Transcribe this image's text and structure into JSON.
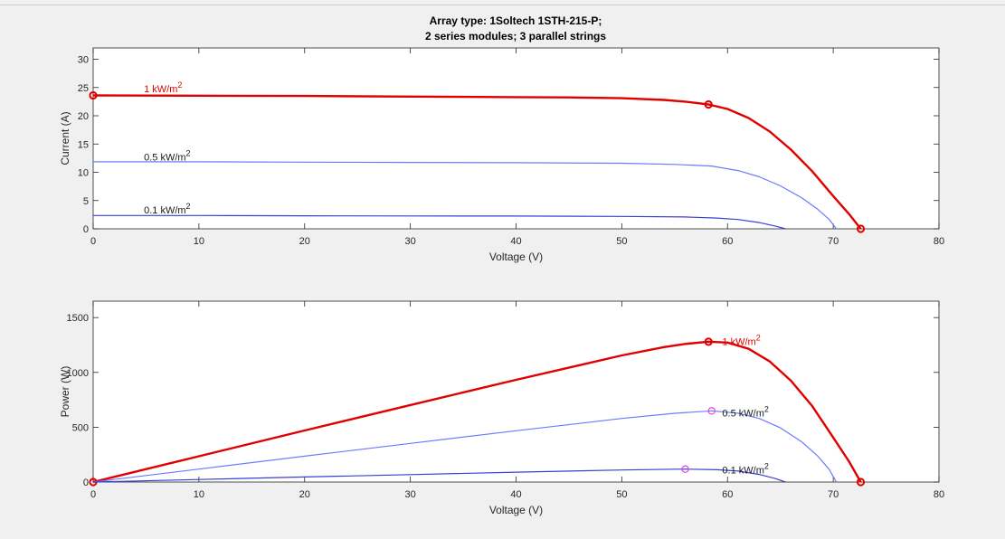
{
  "figure": {
    "title_line1": "Array type: 1Soltech 1STH-215-P;",
    "title_line2": "2 series modules; 3 parallel strings"
  },
  "chart_data": [
    {
      "type": "line",
      "xlabel": "Voltage (V)",
      "ylabel": "Current (A)",
      "xlim": [
        0,
        80
      ],
      "ylim": [
        0,
        32
      ],
      "xticks": [
        0,
        10,
        20,
        30,
        40,
        50,
        60,
        70,
        80
      ],
      "yticks": [
        0,
        5,
        10,
        15,
        20,
        25,
        30
      ],
      "grid": false,
      "series": [
        {
          "name": "1 kW/m",
          "name_sup": "2",
          "color": "#e00000",
          "bold": true,
          "points": [
            [
              0,
              23.6
            ],
            [
              10,
              23.55
            ],
            [
              20,
              23.5
            ],
            [
              30,
              23.4
            ],
            [
              40,
              23.3
            ],
            [
              45,
              23.25
            ],
            [
              50,
              23.1
            ],
            [
              54,
              22.8
            ],
            [
              56,
              22.5
            ],
            [
              58.2,
              22.0
            ],
            [
              60,
              21.2
            ],
            [
              62,
              19.6
            ],
            [
              64,
              17.2
            ],
            [
              66,
              14.0
            ],
            [
              68,
              10.2
            ],
            [
              70,
              5.8
            ],
            [
              71.5,
              2.6
            ],
            [
              72.6,
              0
            ]
          ],
          "markers": [
            [
              0,
              23.6
            ],
            [
              58.2,
              22.0
            ],
            [
              72.6,
              0
            ]
          ]
        },
        {
          "name": "0.5 kW/m",
          "name_sup": "2",
          "color": "#6b7bff",
          "bold": false,
          "points": [
            [
              0,
              11.85
            ],
            [
              10,
              11.85
            ],
            [
              20,
              11.8
            ],
            [
              30,
              11.75
            ],
            [
              40,
              11.7
            ],
            [
              50,
              11.6
            ],
            [
              55,
              11.4
            ],
            [
              58.5,
              11.1
            ],
            [
              61,
              10.3
            ],
            [
              63,
              9.2
            ],
            [
              65,
              7.6
            ],
            [
              67,
              5.5
            ],
            [
              68.5,
              3.5
            ],
            [
              69.6,
              1.7
            ],
            [
              70.3,
              0
            ]
          ],
          "markers": []
        },
        {
          "name": "0.1 kW/m",
          "name_sup": "2",
          "color": "#3a3fd6",
          "bold": false,
          "points": [
            [
              0,
              2.35
            ],
            [
              10,
              2.35
            ],
            [
              20,
              2.3
            ],
            [
              30,
              2.28
            ],
            [
              40,
              2.25
            ],
            [
              50,
              2.2
            ],
            [
              56,
              2.1
            ],
            [
              59,
              1.9
            ],
            [
              61,
              1.65
            ],
            [
              63,
              1.1
            ],
            [
              64.5,
              0.5
            ],
            [
              65.5,
              0
            ]
          ],
          "markers": []
        }
      ],
      "labels": [
        {
          "series": 0,
          "x": 4.8,
          "y": 24.2
        },
        {
          "series": 1,
          "x": 4.8,
          "y": 12.1
        },
        {
          "series": 2,
          "x": 4.8,
          "y": 2.7
        }
      ]
    },
    {
      "type": "line",
      "xlabel": "Voltage (V)",
      "ylabel": "Power (W)",
      "xlim": [
        0,
        80
      ],
      "ylim": [
        0,
        1650
      ],
      "xticks": [
        0,
        10,
        20,
        30,
        40,
        50,
        60,
        70,
        80
      ],
      "yticks": [
        0,
        500,
        1000,
        1500
      ],
      "grid": false,
      "series": [
        {
          "name": "1 kW/m",
          "name_sup": "2",
          "color": "#e00000",
          "bold": true,
          "points": [
            [
              0,
              0
            ],
            [
              10,
              235
            ],
            [
              20,
              470
            ],
            [
              30,
              702
            ],
            [
              40,
              932
            ],
            [
              50,
              1155
            ],
            [
              54,
              1231
            ],
            [
              56,
              1260
            ],
            [
              58.2,
              1280
            ],
            [
              60,
              1272
            ],
            [
              62,
              1215
            ],
            [
              64,
              1100
            ],
            [
              66,
              924
            ],
            [
              68,
              694
            ],
            [
              70,
              406
            ],
            [
              71.5,
              186
            ],
            [
              72.6,
              0
            ]
          ],
          "markers": [
            [
              0,
              0
            ],
            [
              58.2,
              1280
            ],
            [
              72.6,
              0
            ]
          ]
        },
        {
          "name": "0.5 kW/m",
          "name_sup": "2",
          "color": "#6b7bff",
          "bold": false,
          "points": [
            [
              0,
              0
            ],
            [
              10,
              118
            ],
            [
              20,
              236
            ],
            [
              30,
              352
            ],
            [
              40,
              468
            ],
            [
              50,
              580
            ],
            [
              55,
              627
            ],
            [
              58.5,
              649
            ],
            [
              61,
              628
            ],
            [
              63,
              580
            ],
            [
              65,
              494
            ],
            [
              67,
              368
            ],
            [
              68.5,
              240
            ],
            [
              69.6,
              118
            ],
            [
              70.3,
              0
            ]
          ],
          "markers": [
            [
              58.5,
              649
            ]
          ],
          "marker_color": "#e040e0"
        },
        {
          "name": "0.1 kW/m",
          "name_sup": "2",
          "color": "#3a3fd6",
          "bold": false,
          "points": [
            [
              0,
              0
            ],
            [
              10,
              23
            ],
            [
              20,
              46
            ],
            [
              30,
              68
            ],
            [
              40,
              90
            ],
            [
              50,
              110
            ],
            [
              56,
              118
            ],
            [
              59,
              112
            ],
            [
              61,
              100
            ],
            [
              63,
              69
            ],
            [
              64.5,
              32
            ],
            [
              65.5,
              0
            ]
          ],
          "markers": [
            [
              56,
              118
            ]
          ],
          "marker_color": "#e040e0"
        }
      ],
      "labels": [
        {
          "series": 0,
          "x": 59.5,
          "y": 1250
        },
        {
          "series": 1,
          "x": 59.5,
          "y": 600
        },
        {
          "series": 2,
          "x": 59.5,
          "y": 80
        }
      ]
    }
  ]
}
